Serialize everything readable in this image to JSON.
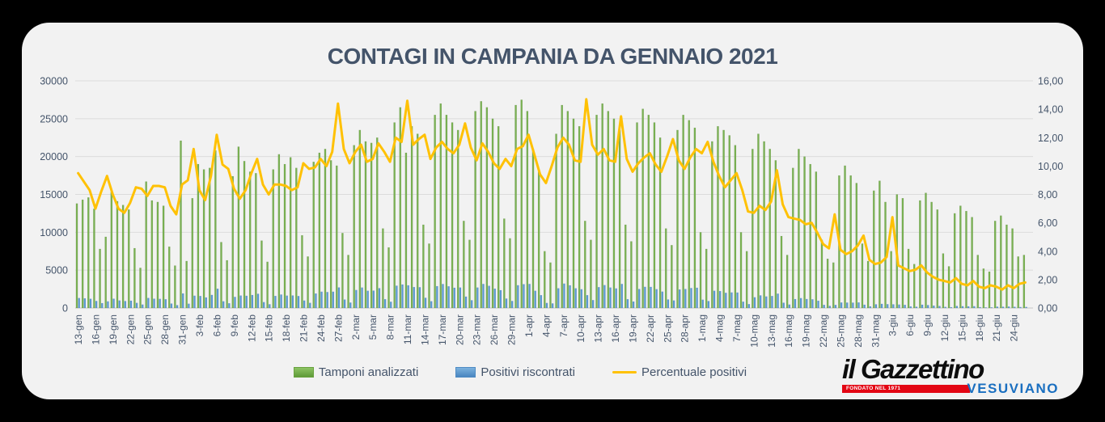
{
  "title": "CONTAGI IN CAMPANIA DA GENNAIO 2021",
  "colors": {
    "background": "#000000",
    "card": "#f2f2f2",
    "title_text": "#44546A",
    "axis_text": "#44546A",
    "gridline": "#dcdcdc",
    "bar_tamponi": "#79B152",
    "bar_positivi": "#5B9BD5",
    "line_percentuale": "#FFC104",
    "logo_red": "#e30613",
    "logo_blue": "#1a6fc0"
  },
  "legend": {
    "items": [
      {
        "label": "Tamponi analizzati",
        "swatch": "green-bar"
      },
      {
        "label": "Positivi riscontrati",
        "swatch": "blue-bar"
      },
      {
        "label": "Percentuale positivi",
        "swatch": "yellow-line"
      }
    ]
  },
  "logo": {
    "name": "il Gazzettino",
    "tagline": "FONDATO NEL 1971",
    "subtitle": "VESUVIANO"
  },
  "chart_data": {
    "type": "bar",
    "subtype": "daily bars with percentage line (combo chart)",
    "title": "CONTAGI IN CAMPANIA DA GENNAIO 2021",
    "xlabel": "",
    "ylabel_left": "",
    "ylabel_right": "",
    "grid": "horizontal",
    "legend_position": "bottom",
    "left_axis": {
      "min": 0,
      "max": 30000,
      "ticks": [
        0,
        5000,
        10000,
        15000,
        20000,
        25000,
        30000
      ]
    },
    "right_axis": {
      "min": 0,
      "max": 16,
      "ticks": [
        "0,00",
        "2,00",
        "4,00",
        "6,00",
        "8,00",
        "10,00",
        "12,00",
        "14,00",
        "16,00"
      ]
    },
    "tick_every_n_days": 3,
    "tick_labels": [
      "13-gen",
      "16-gen",
      "19-gen",
      "22-gen",
      "25-gen",
      "28-gen",
      "31-gen",
      "3-feb",
      "6-feb",
      "9-feb",
      "12-feb",
      "15-feb",
      "18-feb",
      "21-feb",
      "24-feb",
      "27-feb",
      "2-mar",
      "5-mar",
      "8-mar",
      "11-mar",
      "14-mar",
      "17-mar",
      "20-mar",
      "23-mar",
      "26-mar",
      "29-mar",
      "1-apr",
      "4-apr",
      "7-apr",
      "10-apr",
      "13-apr",
      "16-apr",
      "19-apr",
      "22-apr",
      "25-apr",
      "28-apr",
      "1-mag",
      "4-mag",
      "7-mag",
      "10-mag",
      "13-mag",
      "16-mag",
      "19-mag",
      "22-mag",
      "25-mag",
      "28-mag",
      "31-mag",
      "3-giu",
      "6-giu",
      "9-giu",
      "12-giu",
      "15-giu",
      "18-giu",
      "21-giu",
      "24-giu"
    ],
    "series": [
      {
        "name": "Tamponi analizzati",
        "type": "bar",
        "axis": "left",
        "color": "#79B152",
        "values": [
          13800,
          14300,
          14600,
          13100,
          7800,
          9400,
          15300,
          14100,
          13600,
          13000,
          7900,
          5300,
          16700,
          14200,
          14000,
          13500,
          8100,
          5600,
          22100,
          6200,
          14500,
          19000,
          18300,
          18500,
          20800,
          8700,
          6300,
          17400,
          21300,
          19400,
          18000,
          17800,
          8900,
          6100,
          18300,
          20300,
          19000,
          19900,
          18500,
          9600,
          6800,
          19300,
          20500,
          21000,
          19500,
          18800,
          9900,
          7000,
          21500,
          23500,
          22000,
          21800,
          22500,
          10500,
          8000,
          24500,
          26500,
          20500,
          24000,
          23000,
          11000,
          8500,
          25500,
          27000,
          25500,
          24500,
          23500,
          11500,
          9000,
          26000,
          27300,
          26500,
          25000,
          24000,
          11800,
          9200,
          26800,
          27500,
          26000,
          21000,
          18000,
          7500,
          6000,
          23000,
          26800,
          26000,
          25000,
          24000,
          11500,
          9000,
          25500,
          27000,
          26000,
          25000,
          23500,
          11000,
          8800,
          24500,
          26300,
          25500,
          24500,
          22500,
          10500,
          8300,
          23500,
          25500,
          24800,
          23800,
          10000,
          7800,
          22000,
          24000,
          23500,
          22800,
          21500,
          10000,
          7500,
          21000,
          23000,
          22000,
          21000,
          19500,
          9500,
          7000,
          18500,
          21000,
          20000,
          19000,
          18000,
          9000,
          6500,
          6000,
          17500,
          18800,
          17500,
          16500,
          8500,
          6200,
          15500,
          16800,
          14000,
          7500,
          15000,
          14500,
          7800,
          5800,
          14200,
          15200,
          14000,
          13000,
          7200,
          5500,
          12500,
          13500,
          12800,
          12000,
          7000,
          5200,
          4800,
          11500,
          12200,
          11000,
          10500,
          6800,
          7000
        ]
      },
      {
        "name": "Positivi riscontrati",
        "type": "bar",
        "axis": "left",
        "color": "#5B9BD5",
        "values": [
          1310,
          1270,
          1210,
          920,
          640,
          870,
          1220,
          990,
          910,
          960,
          670,
          450,
          1320,
          1220,
          1200,
          1150,
          580,
          370,
          1920,
          560,
          1620,
          1580,
          1390,
          1720,
          2540,
          880,
          620,
          1460,
          1640,
          1610,
          1710,
          1870,
          770,
          490,
          1590,
          1770,
          1630,
          1650,
          1570,
          980,
          670,
          1910,
          2150,
          2100,
          2150,
          2710,
          1110,
          710,
          2370,
          2700,
          2270,
          2290,
          2610,
          1160,
          820,
          2940,
          3100,
          2990,
          2760,
          2740,
          1340,
          890,
          2880,
          3160,
          2860,
          2670,
          2700,
          1500,
          1020,
          2700,
          3170,
          2920,
          2550,
          2350,
          1240,
          920,
          3000,
          3140,
          3170,
          2270,
          1690,
          660,
          600,
          2600,
          3220,
          2990,
          2600,
          2470,
          1690,
          1040,
          2750,
          3020,
          2700,
          2580,
          3170,
          1160,
          850,
          2500,
          2790,
          2780,
          2480,
          2160,
          1120,
          990,
          2440,
          2500,
          2630,
          2670,
          1090,
          910,
          2270,
          2230,
          2000,
          2050,
          2040,
          830,
          510,
          1410,
          1660,
          1520,
          1580,
          1890,
          690,
          450,
          1170,
          1300,
          1180,
          1140,
          950,
          410,
          270,
          400,
          720,
          710,
          700,
          730,
          430,
          210,
          480,
          540,
          500,
          480,
          450,
          410,
          200,
          160,
          430,
          380,
          310,
          260,
          140,
          100,
          260,
          230,
          210,
          230,
          110,
          70,
          80,
          170,
          160,
          180,
          150,
          120,
          130
        ]
      },
      {
        "name": "Percentuale positivi",
        "type": "line",
        "axis": "right",
        "color": "#FFC104",
        "values": [
          9.5,
          8.9,
          8.3,
          7.0,
          8.2,
          9.3,
          8.0,
          7.0,
          6.7,
          7.4,
          8.5,
          8.4,
          7.9,
          8.6,
          8.6,
          8.5,
          7.2,
          6.6,
          8.7,
          9.0,
          11.2,
          8.3,
          7.6,
          9.3,
          12.2,
          10.1,
          9.8,
          8.4,
          7.7,
          8.3,
          9.5,
          10.5,
          8.7,
          8.0,
          8.7,
          8.7,
          8.6,
          8.3,
          8.5,
          10.2,
          9.8,
          9.9,
          10.5,
          10.0,
          11.0,
          14.4,
          11.2,
          10.2,
          11.0,
          11.5,
          10.3,
          10.5,
          11.6,
          11.0,
          10.3,
          12.0,
          11.7,
          14.6,
          11.5,
          11.9,
          12.2,
          10.5,
          11.3,
          11.7,
          11.2,
          10.9,
          11.5,
          13.0,
          11.3,
          10.4,
          11.6,
          11.0,
          10.2,
          9.8,
          10.5,
          10.0,
          11.2,
          11.4,
          12.2,
          10.8,
          9.4,
          8.8,
          10.0,
          11.3,
          12.0,
          11.5,
          10.4,
          10.3,
          14.7,
          11.5,
          10.8,
          11.2,
          10.4,
          10.3,
          13.5,
          10.5,
          9.6,
          10.2,
          10.6,
          10.9,
          10.1,
          9.6,
          10.7,
          11.9,
          10.4,
          9.8,
          10.6,
          11.2,
          10.9,
          11.7,
          10.3,
          9.3,
          8.5,
          9.0,
          9.5,
          8.3,
          6.8,
          6.7,
          7.2,
          6.9,
          7.5,
          9.7,
          7.3,
          6.4,
          6.3,
          6.2,
          5.9,
          6.0,
          5.3,
          4.5,
          4.2,
          6.6,
          4.1,
          3.8,
          4.0,
          4.4,
          5.1,
          3.4,
          3.1,
          3.2,
          3.6,
          6.4,
          3.0,
          2.8,
          2.6,
          2.7,
          3.0,
          2.5,
          2.2,
          2.0,
          1.9,
          1.8,
          2.1,
          1.7,
          1.6,
          1.9,
          1.5,
          1.4,
          1.6,
          1.5,
          1.3,
          1.6,
          1.4,
          1.7,
          1.8
        ]
      }
    ]
  }
}
